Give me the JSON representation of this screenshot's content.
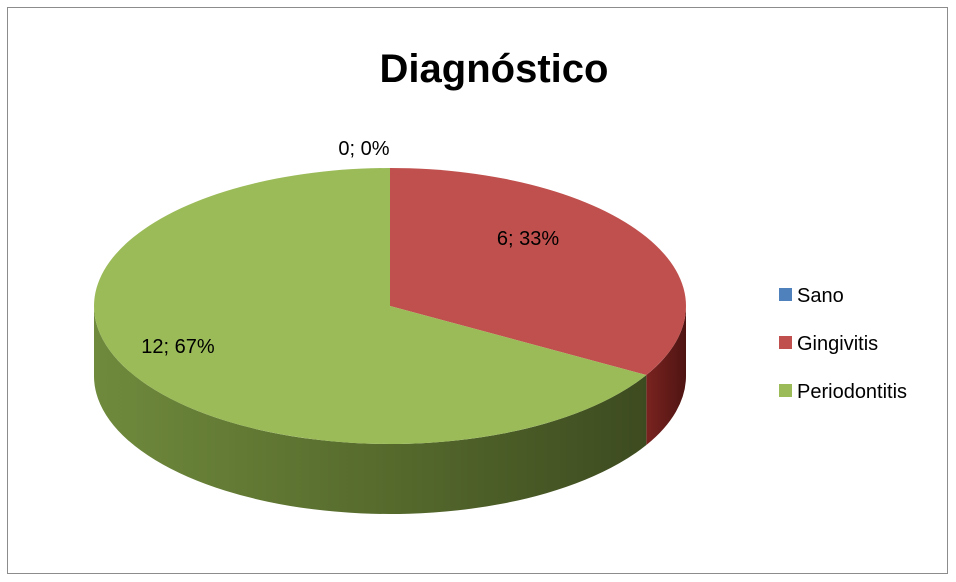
{
  "chart_data": {
    "type": "pie",
    "title": "Diagnóstico",
    "categories": [
      "Sano",
      "Gingivitis",
      "Periodontitis"
    ],
    "values": [
      0,
      6,
      12
    ],
    "percentages": [
      "0%",
      "33%",
      "67%"
    ],
    "data_labels": [
      "0; 0%",
      "6; 33%",
      "12; 67%"
    ],
    "colors": [
      "#4f81bd",
      "#c0504d",
      "#9bbb59"
    ],
    "legend_position": "right",
    "style": "3d"
  }
}
